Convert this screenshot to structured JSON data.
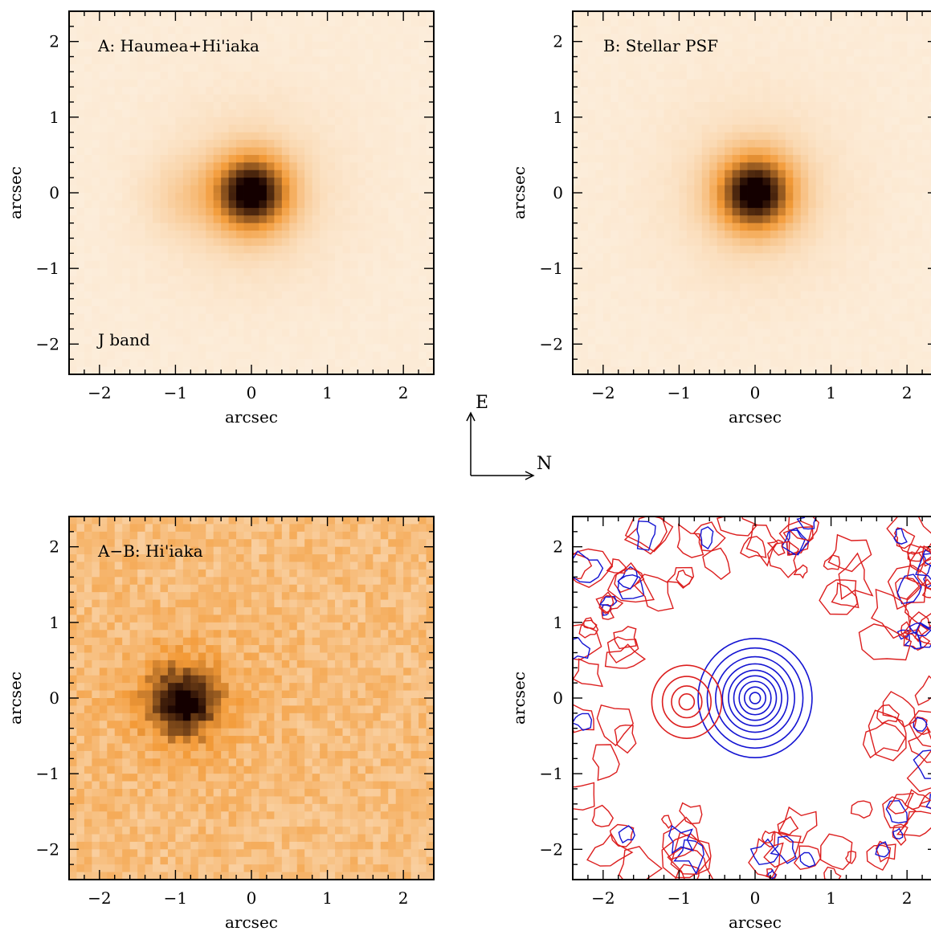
{
  "chart_data": [
    {
      "type": "heatmap",
      "id": "A",
      "title": "A: Haumea+Hi'iaka",
      "annotation": "J band",
      "xlabel": "arcsec",
      "ylabel": "arcsec",
      "xlim": [
        -2.4,
        2.4
      ],
      "ylim": [
        -2.4,
        2.4
      ],
      "xticks": [
        -2,
        -1,
        0,
        1,
        2
      ],
      "yticks": [
        -2,
        -1,
        0,
        1,
        2
      ],
      "tick_labels": [
        "−2",
        "−1",
        "0",
        "1",
        "2"
      ],
      "colormap": "orange",
      "peak": [
        0.0,
        0.0
      ],
      "peak_sigma_arcsec": 0.34,
      "secondary_peak": [
        -0.9,
        -0.05
      ],
      "secondary_relative_flux": 0.12,
      "background_level": 0.04
    },
    {
      "type": "heatmap",
      "id": "B",
      "title": "B: Stellar PSF",
      "annotation": "",
      "xlabel": "arcsec",
      "ylabel": "arcsec",
      "xlim": [
        -2.4,
        2.4
      ],
      "ylim": [
        -2.4,
        2.4
      ],
      "xticks": [
        -2,
        -1,
        0,
        1,
        2
      ],
      "yticks": [
        -2,
        -1,
        0,
        1,
        2
      ],
      "tick_labels": [
        "−2",
        "−1",
        "0",
        "1",
        "2"
      ],
      "colormap": "orange",
      "peak": [
        0.0,
        0.0
      ],
      "peak_sigma_arcsec": 0.34,
      "background_level": 0.04
    },
    {
      "type": "heatmap",
      "id": "A-B",
      "title": "A−B: Hi'iaka",
      "annotation": "",
      "xlabel": "arcsec",
      "ylabel": "arcsec",
      "xlim": [
        -2.4,
        2.4
      ],
      "ylim": [
        -2.4,
        2.4
      ],
      "xticks": [
        -2,
        -1,
        0,
        1,
        2
      ],
      "yticks": [
        -2,
        -1,
        0,
        1,
        2
      ],
      "tick_labels": [
        "−2",
        "−1",
        "0",
        "1",
        "2"
      ],
      "colormap": "orange",
      "peak": [
        -0.9,
        -0.05
      ],
      "peak_sigma_arcsec": 0.32,
      "background_level": 0.3,
      "noise_level": 0.1
    },
    {
      "type": "contour",
      "id": "D",
      "title": "",
      "xlabel": "arcsec",
      "ylabel": "arcsec",
      "xlim": [
        -2.4,
        2.4
      ],
      "ylim": [
        -2.4,
        2.4
      ],
      "xticks": [
        -2,
        -1,
        0,
        1,
        2
      ],
      "yticks": [
        -2,
        -1,
        0,
        1,
        2
      ],
      "tick_labels": [
        "−2",
        "−1",
        "0",
        "1",
        "2"
      ],
      "series": [
        {
          "color": "#1414d2",
          "center": [
            0.0,
            0.0
          ],
          "radii": [
            0.07,
            0.14,
            0.21,
            0.28,
            0.35,
            0.43,
            0.52,
            0.63,
            0.75
          ]
        },
        {
          "color": "#dc1e1e",
          "center": [
            -0.9,
            -0.05
          ],
          "radii": [
            0.1,
            0.2,
            0.32,
            0.46
          ]
        }
      ]
    }
  ],
  "compass": {
    "up_label": "E",
    "right_label": "N"
  },
  "colors": {
    "heat_light": "#fdf3e6",
    "heat_mid": "#f39a37",
    "heat_dark": "#140000",
    "contour_blue": "#1414d2",
    "contour_red": "#dc1e1e"
  }
}
